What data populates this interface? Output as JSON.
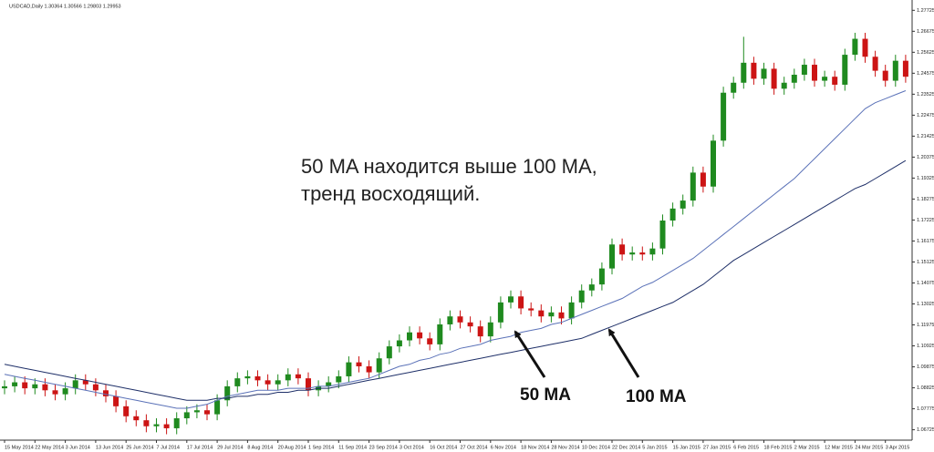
{
  "chart_data": {
    "type": "candlestick",
    "title": "USDCAD,Daily  1.30364 1.30566 1.29803 1.29953",
    "categories": [
      "15 May 2014",
      null,
      null,
      "22 May 2014",
      null,
      null,
      "3 Jun 2014",
      null,
      null,
      "13 Jun 2014",
      null,
      null,
      "25 Jun 2014",
      null,
      null,
      "7 Jul 2014",
      null,
      null,
      "17 Jul 2014",
      null,
      null,
      "29 Jul 2014",
      null,
      null,
      "8 Aug 2014",
      null,
      null,
      "20 Aug 2014",
      null,
      null,
      "1 Sep 2014",
      null,
      null,
      "11 Sep 2014",
      null,
      null,
      "23 Sep 2014",
      null,
      null,
      "3 Oct 2014",
      null,
      null,
      "16 Oct 2014",
      null,
      null,
      "27 Oct 2014",
      null,
      null,
      "6 Nov 2014",
      null,
      null,
      "18 Nov 2014",
      null,
      null,
      "28 Nov 2014",
      null,
      null,
      "10 Dec 2014",
      null,
      null,
      "22 Dec 2014",
      null,
      null,
      "5 Jan 2015",
      null,
      null,
      "15 Jan 2015",
      null,
      null,
      "27 Jan 2015",
      null,
      null,
      "6 Feb 2015",
      null,
      null,
      "18 Feb 2015",
      null,
      null,
      "2 Mar 2015",
      null,
      null,
      "12 Mar 2015",
      null,
      null,
      "24 Mar 2015",
      null,
      null,
      "3 Apr 2015",
      null,
      null
    ],
    "open": [
      1.088,
      1.089,
      1.091,
      1.088,
      1.09,
      1.087,
      1.085,
      1.088,
      1.092,
      1.09,
      1.087,
      1.084,
      1.079,
      1.074,
      1.072,
      1.069,
      1.07,
      1.068,
      1.073,
      1.076,
      1.077,
      1.075,
      1.082,
      1.089,
      1.093,
      1.094,
      1.092,
      1.09,
      1.092,
      1.095,
      1.093,
      1.087,
      1.089,
      1.091,
      1.094,
      1.101,
      1.099,
      1.096,
      1.103,
      1.109,
      1.112,
      1.116,
      1.113,
      1.11,
      1.12,
      1.124,
      1.121,
      1.119,
      1.114,
      1.121,
      1.131,
      1.134,
      1.128,
      1.127,
      1.124,
      1.126,
      1.123,
      1.131,
      1.137,
      1.14,
      1.148,
      1.16,
      1.155,
      1.156,
      1.155,
      1.158,
      1.172,
      1.178,
      1.182,
      1.196,
      1.189,
      1.212,
      1.236,
      1.241,
      1.251,
      1.243,
      1.248,
      1.238,
      1.241,
      1.245,
      1.25,
      1.242,
      1.244,
      1.24,
      1.255,
      1.263,
      1.254,
      1.247,
      1.242,
      1.252
    ],
    "high": [
      1.092,
      1.094,
      1.094,
      1.093,
      1.093,
      1.09,
      1.091,
      1.095,
      1.095,
      1.093,
      1.09,
      1.087,
      1.082,
      1.077,
      1.075,
      1.073,
      1.073,
      1.076,
      1.079,
      1.08,
      1.08,
      1.085,
      1.092,
      1.096,
      1.097,
      1.097,
      1.095,
      1.095,
      1.098,
      1.098,
      1.096,
      1.092,
      1.094,
      1.097,
      1.104,
      1.104,
      1.102,
      1.106,
      1.112,
      1.115,
      1.119,
      1.119,
      1.116,
      1.123,
      1.127,
      1.127,
      1.124,
      1.122,
      1.124,
      1.134,
      1.137,
      1.137,
      1.131,
      1.13,
      1.129,
      1.129,
      1.134,
      1.14,
      1.143,
      1.151,
      1.163,
      1.163,
      1.159,
      1.159,
      1.161,
      1.175,
      1.181,
      1.185,
      1.199,
      1.199,
      1.215,
      1.239,
      1.244,
      1.264,
      1.254,
      1.251,
      1.251,
      1.244,
      1.248,
      1.253,
      1.253,
      1.247,
      1.247,
      1.258,
      1.266,
      1.266,
      1.257,
      1.25,
      1.255,
      1.255
    ],
    "low": [
      1.085,
      1.086,
      1.085,
      1.085,
      1.084,
      1.082,
      1.082,
      1.085,
      1.087,
      1.084,
      1.081,
      1.076,
      1.071,
      1.069,
      1.066,
      1.066,
      1.065,
      1.065,
      1.07,
      1.073,
      1.072,
      1.072,
      1.079,
      1.086,
      1.09,
      1.089,
      1.087,
      1.087,
      1.089,
      1.09,
      1.084,
      1.084,
      1.086,
      1.088,
      1.091,
      1.096,
      1.093,
      1.093,
      1.1,
      1.106,
      1.109,
      1.11,
      1.107,
      1.107,
      1.117,
      1.118,
      1.116,
      1.111,
      1.111,
      1.118,
      1.128,
      1.125,
      1.124,
      1.121,
      1.121,
      1.12,
      1.12,
      1.128,
      1.134,
      1.137,
      1.145,
      1.152,
      1.152,
      1.152,
      1.152,
      1.155,
      1.169,
      1.175,
      1.179,
      1.186,
      1.186,
      1.209,
      1.233,
      1.238,
      1.24,
      1.24,
      1.235,
      1.235,
      1.238,
      1.242,
      1.239,
      1.239,
      1.237,
      1.237,
      1.252,
      1.251,
      1.244,
      1.239,
      1.239,
      1.241
    ],
    "close": [
      1.089,
      1.091,
      1.088,
      1.09,
      1.087,
      1.085,
      1.088,
      1.092,
      1.09,
      1.087,
      1.084,
      1.079,
      1.074,
      1.072,
      1.069,
      1.07,
      1.068,
      1.073,
      1.076,
      1.077,
      1.075,
      1.082,
      1.089,
      1.093,
      1.094,
      1.092,
      1.09,
      1.092,
      1.095,
      1.093,
      1.087,
      1.089,
      1.091,
      1.094,
      1.101,
      1.099,
      1.096,
      1.103,
      1.109,
      1.112,
      1.116,
      1.113,
      1.11,
      1.12,
      1.124,
      1.121,
      1.119,
      1.114,
      1.121,
      1.131,
      1.134,
      1.128,
      1.127,
      1.124,
      1.126,
      1.123,
      1.131,
      1.137,
      1.14,
      1.148,
      1.16,
      1.155,
      1.156,
      1.155,
      1.158,
      1.172,
      1.178,
      1.182,
      1.196,
      1.189,
      1.212,
      1.236,
      1.241,
      1.251,
      1.243,
      1.248,
      1.238,
      1.241,
      1.245,
      1.25,
      1.242,
      1.244,
      1.24,
      1.255,
      1.263,
      1.254,
      1.247,
      1.242,
      1.252,
      1.244
    ],
    "up_color": "#1f8a1f",
    "down_color": "#cc1414",
    "series": [
      {
        "name": "50 MA",
        "color": "#5b72b8",
        "values": [
          1.095,
          1.094,
          1.093,
          1.092,
          1.091,
          1.09,
          1.089,
          1.088,
          1.087,
          1.086,
          1.085,
          1.084,
          1.083,
          1.082,
          1.081,
          1.08,
          1.079,
          1.078,
          1.078,
          1.079,
          1.08,
          1.082,
          1.084,
          1.085,
          1.086,
          1.087,
          1.087,
          1.087,
          1.088,
          1.088,
          1.088,
          1.089,
          1.089,
          1.09,
          1.091,
          1.092,
          1.093,
          1.095,
          1.097,
          1.099,
          1.1,
          1.102,
          1.103,
          1.105,
          1.106,
          1.108,
          1.109,
          1.11,
          1.112,
          1.113,
          1.114,
          1.116,
          1.117,
          1.118,
          1.12,
          1.121,
          1.123,
          1.125,
          1.127,
          1.129,
          1.131,
          1.133,
          1.136,
          1.139,
          1.141,
          1.144,
          1.147,
          1.15,
          1.153,
          1.157,
          1.161,
          1.165,
          1.169,
          1.173,
          1.177,
          1.181,
          1.185,
          1.189,
          1.193,
          1.198,
          1.203,
          1.208,
          1.213,
          1.218,
          1.223,
          1.228,
          1.231,
          1.233,
          1.235,
          1.237
        ]
      },
      {
        "name": "100 MA",
        "color": "#1e2f68",
        "values": [
          1.1,
          1.099,
          1.098,
          1.097,
          1.096,
          1.095,
          1.094,
          1.093,
          1.092,
          1.091,
          1.09,
          1.089,
          1.088,
          1.087,
          1.086,
          1.085,
          1.084,
          1.083,
          1.082,
          1.082,
          1.082,
          1.083,
          1.083,
          1.084,
          1.084,
          1.085,
          1.085,
          1.086,
          1.086,
          1.087,
          1.087,
          1.088,
          1.088,
          1.089,
          1.09,
          1.091,
          1.092,
          1.093,
          1.094,
          1.095,
          1.096,
          1.097,
          1.098,
          1.099,
          1.1,
          1.101,
          1.102,
          1.103,
          1.104,
          1.105,
          1.106,
          1.107,
          1.108,
          1.109,
          1.11,
          1.111,
          1.112,
          1.113,
          1.115,
          1.117,
          1.119,
          1.121,
          1.123,
          1.125,
          1.127,
          1.129,
          1.131,
          1.134,
          1.137,
          1.14,
          1.144,
          1.148,
          1.152,
          1.155,
          1.158,
          1.161,
          1.164,
          1.167,
          1.17,
          1.173,
          1.176,
          1.179,
          1.182,
          1.185,
          1.188,
          1.19,
          1.193,
          1.196,
          1.199,
          1.202
        ]
      }
    ],
    "ylim": [
      1.0625,
      1.2815
    ],
    "yticks": [
      1.06725,
      1.07775,
      1.08825,
      1.09875,
      1.10925,
      1.11975,
      1.13025,
      1.14075,
      1.15125,
      1.16175,
      1.17225,
      1.18275,
      1.19325,
      1.20375,
      1.21425,
      1.22475,
      1.23525,
      1.24575,
      1.25625,
      1.26675,
      1.27725
    ],
    "annotations": [
      "50 MA находится выше 100 MA,",
      "тренд восходящий."
    ]
  }
}
